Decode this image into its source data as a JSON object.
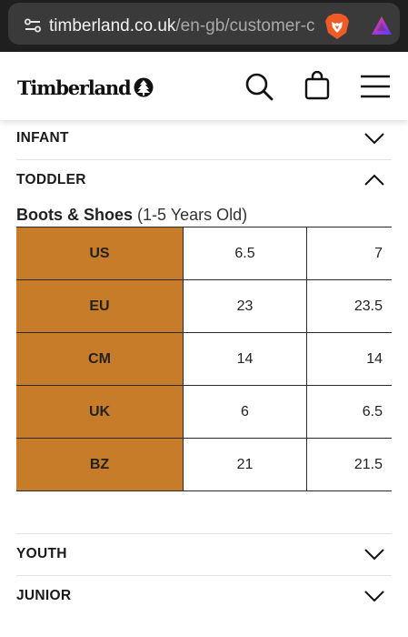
{
  "browser": {
    "url_host": "timberland.co.uk",
    "url_path": "/en-gb/customer-ca"
  },
  "header": {
    "logo_text": "Timberland"
  },
  "sections": {
    "infant": "INFANT",
    "toddler": "TODDLER",
    "youth": "YOUTH",
    "junior": "JUNIOR"
  },
  "toddler_table": {
    "title": "Boots & Shoes",
    "note": "(1-5 Years Old)",
    "rows": [
      {
        "label": "US",
        "values": [
          "6.5",
          "7"
        ]
      },
      {
        "label": "EU",
        "values": [
          "23",
          "23.5"
        ]
      },
      {
        "label": "CM",
        "values": [
          "14",
          "14"
        ]
      },
      {
        "label": "UK",
        "values": [
          "6",
          "6.5"
        ]
      },
      {
        "label": "BZ",
        "values": [
          "21",
          "21.5"
        ]
      }
    ]
  },
  "colors": {
    "header_cell": "#c77c2a",
    "browser_bar": "#1f1f1f"
  }
}
